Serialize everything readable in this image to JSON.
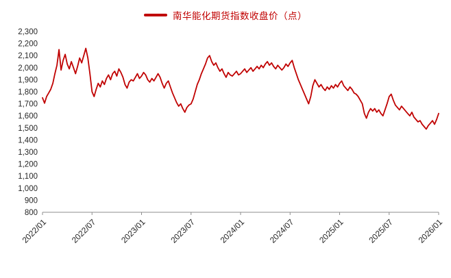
{
  "colors": {
    "line": "#C00000",
    "legend_text": "#C00000",
    "axis_text": "#262626",
    "axis_line": "#8C8C8C"
  },
  "chart_data": {
    "type": "line",
    "title": "南华能化期货指数收盘价（点）",
    "xlabel": "",
    "ylabel": "",
    "ylim": [
      800,
      2300
    ],
    "grid": false,
    "legend_position": "top",
    "y_tick_values": [
      800,
      900,
      1000,
      1100,
      1200,
      1300,
      1400,
      1500,
      1600,
      1700,
      1800,
      1900,
      2000,
      2100,
      2200,
      2300
    ],
    "y_tick_labels": [
      "800",
      "900",
      "1,000",
      "1,100",
      "1,200",
      "1,300",
      "1,400",
      "1,500",
      "1,600",
      "1,700",
      "1,800",
      "1,900",
      "2,000",
      "2,100",
      "2,200",
      "2,300"
    ],
    "x_tick_labels": [
      "2022/01",
      "2022/07",
      "2023/01",
      "2023/07",
      "2024/01",
      "2024/07",
      "2025/01",
      "2025/07",
      "2026/01"
    ],
    "x_tick_indices": [
      0,
      24,
      48,
      72,
      96,
      120,
      144,
      168,
      192
    ],
    "series": [
      {
        "name": "南华能化期货指数收盘价（点）",
        "values": [
          1750,
          1705,
          1760,
          1790,
          1820,
          1870,
          1950,
          2020,
          2150,
          1980,
          2060,
          2110,
          2030,
          1990,
          2050,
          2000,
          1950,
          2010,
          2080,
          2040,
          2100,
          2160,
          2080,
          1950,
          1800,
          1760,
          1820,
          1870,
          1840,
          1890,
          1860,
          1910,
          1940,
          1900,
          1950,
          1970,
          1930,
          1990,
          1960,
          1920,
          1860,
          1830,
          1880,
          1900,
          1890,
          1920,
          1950,
          1910,
          1930,
          1960,
          1940,
          1900,
          1880,
          1910,
          1890,
          1920,
          1950,
          1920,
          1870,
          1830,
          1870,
          1890,
          1840,
          1790,
          1750,
          1710,
          1680,
          1700,
          1660,
          1630,
          1670,
          1690,
          1700,
          1740,
          1800,
          1860,
          1900,
          1950,
          1990,
          2030,
          2080,
          2100,
          2050,
          2020,
          2040,
          2000,
          1970,
          1990,
          1950,
          1920,
          1960,
          1940,
          1930,
          1950,
          1970,
          1940,
          1950,
          1970,
          1990,
          1960,
          1980,
          2000,
          1970,
          1990,
          2010,
          1990,
          2020,
          2000,
          2030,
          2050,
          2020,
          2040,
          2010,
          1990,
          2020,
          2000,
          1980,
          2000,
          2030,
          2010,
          2040,
          2060,
          2000,
          1950,
          1900,
          1860,
          1820,
          1780,
          1740,
          1700,
          1760,
          1850,
          1900,
          1870,
          1840,
          1860,
          1830,
          1810,
          1840,
          1820,
          1850,
          1830,
          1860,
          1840,
          1870,
          1890,
          1850,
          1830,
          1810,
          1840,
          1820,
          1790,
          1780,
          1760,
          1730,
          1700,
          1620,
          1580,
          1630,
          1660,
          1640,
          1660,
          1630,
          1650,
          1620,
          1600,
          1650,
          1700,
          1760,
          1780,
          1730,
          1690,
          1670,
          1650,
          1680,
          1660,
          1640,
          1620,
          1600,
          1630,
          1590,
          1570,
          1550,
          1560,
          1530,
          1510,
          1490,
          1520,
          1540,
          1560,
          1530,
          1570,
          1620
        ]
      }
    ]
  }
}
